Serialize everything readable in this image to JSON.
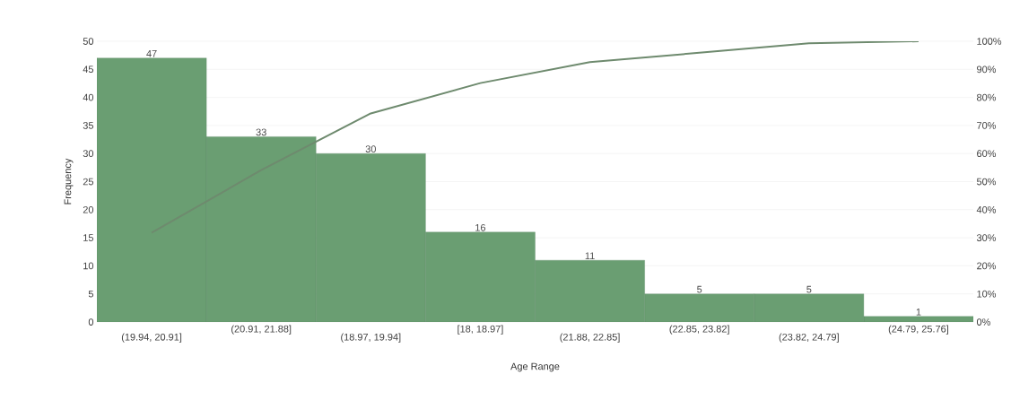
{
  "chart_data": {
    "type": "bar",
    "xlabel": "Age Range",
    "ylabel": "Frequency",
    "categories": [
      "(19.94, 20.91]",
      "(20.91, 21.88]",
      "(18.97, 19.94]",
      "[18, 18.97]",
      "(21.88, 22.85]",
      "(22.85, 23.82]",
      "(23.82, 24.79]",
      "(24.79, 25.76]"
    ],
    "series": [
      {
        "color": "#6a9e72",
        "values": [
          47,
          33,
          30,
          16,
          11,
          5,
          5,
          1
        ],
        "value_labels": [
          "47",
          "33",
          "30",
          "16",
          "11",
          "5",
          "5",
          "1"
        ]
      },
      {
        "type": "line",
        "axis": "y2",
        "color": "#6e8a6e",
        "values": [
          31.8,
          54.1,
          74.3,
          85.1,
          92.6,
          95.9,
          99.3,
          100
        ]
      }
    ],
    "ylim": [
      0,
      50
    ],
    "yticks": [
      0,
      5,
      10,
      15,
      20,
      25,
      30,
      35,
      40,
      45,
      50
    ],
    "y2lim": [
      0,
      100
    ],
    "y2ticks": [
      {
        "value": 0,
        "label": "0%"
      },
      {
        "value": 10,
        "label": "10%"
      },
      {
        "value": 20,
        "label": "20%"
      },
      {
        "value": 30,
        "label": "30%"
      },
      {
        "value": 40,
        "label": "40%"
      },
      {
        "value": 50,
        "label": "50%"
      },
      {
        "value": 60,
        "label": "60%"
      },
      {
        "value": 70,
        "label": "70%"
      },
      {
        "value": 80,
        "label": "80%"
      },
      {
        "value": 90,
        "label": "90%"
      },
      {
        "value": 100,
        "label": "100%"
      }
    ],
    "grid": "y",
    "marker": "none"
  }
}
